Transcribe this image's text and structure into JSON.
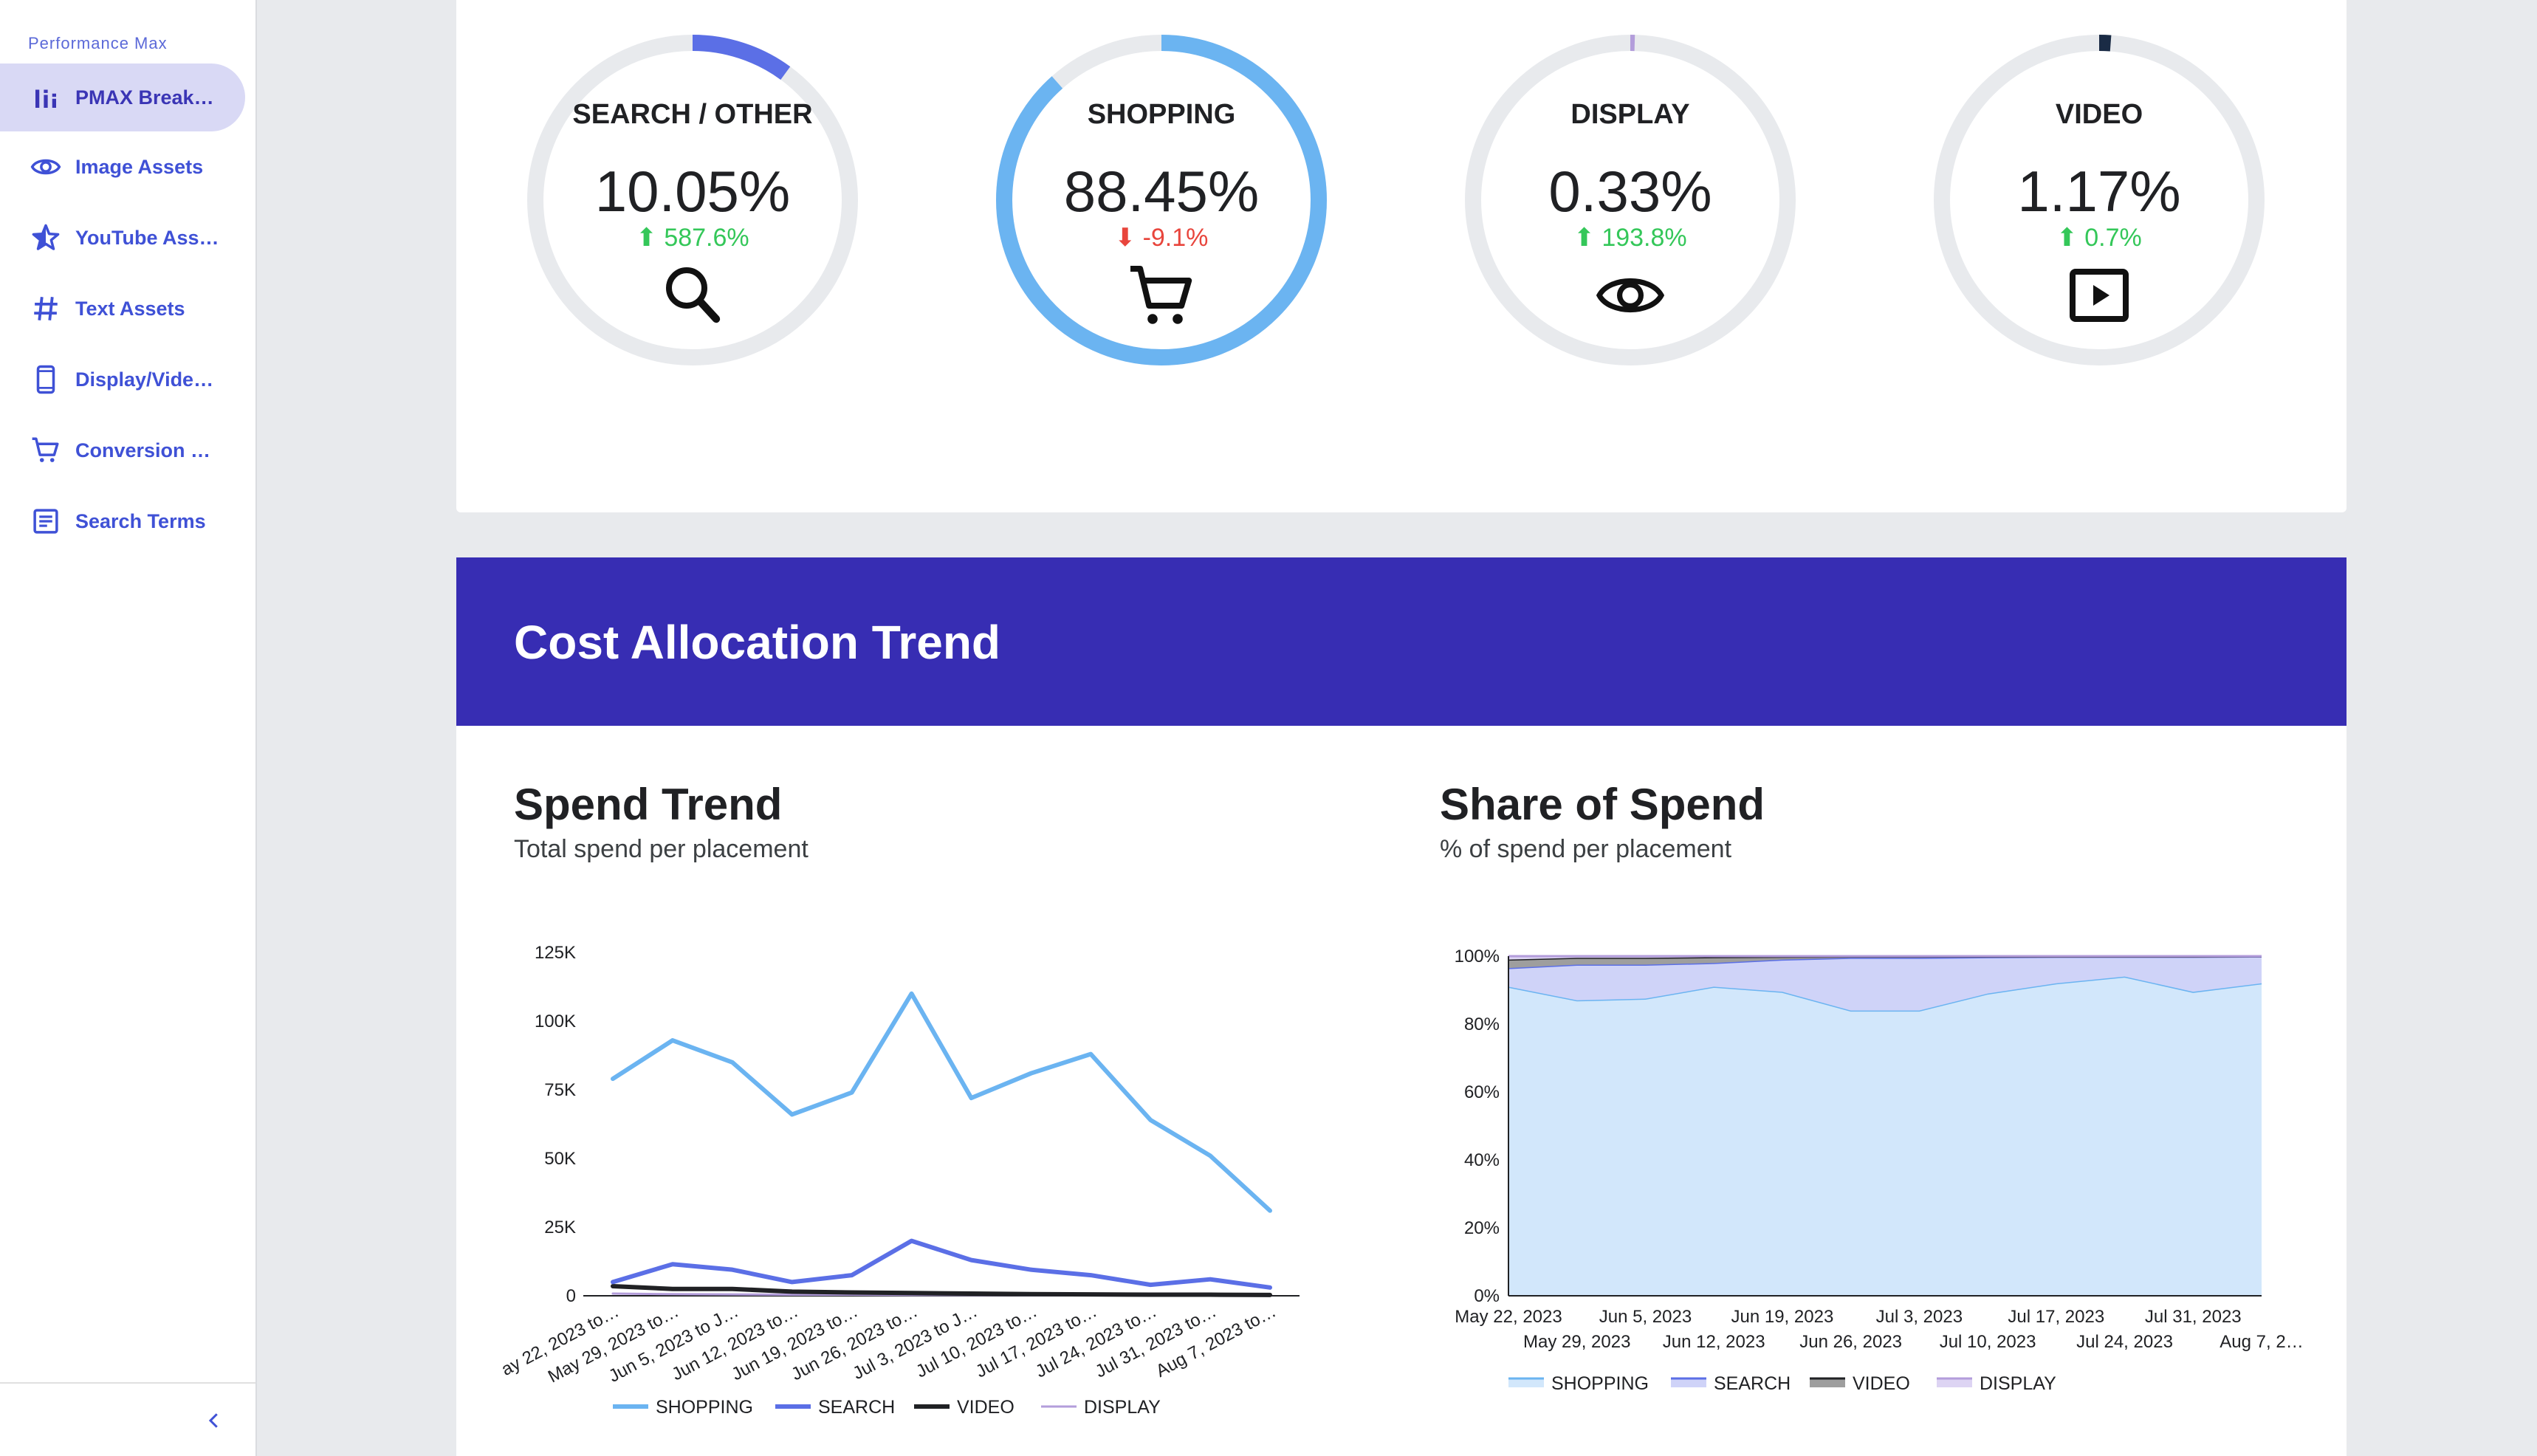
{
  "sidebar": {
    "title": "Performance Max",
    "items": [
      {
        "label": "PMAX Break…",
        "icon": "bar-chart-icon",
        "active": true
      },
      {
        "label": "Image Assets",
        "icon": "eye-icon",
        "active": false
      },
      {
        "label": "YouTube Ass…",
        "icon": "star-icon",
        "active": false
      },
      {
        "label": "Text Assets",
        "icon": "hash-icon",
        "active": false
      },
      {
        "label": "Display/Vide…",
        "icon": "phone-icon",
        "active": false
      },
      {
        "label": "Conversion …",
        "icon": "cart-icon",
        "active": false
      },
      {
        "label": "Search Terms",
        "icon": "list-icon",
        "active": false
      }
    ]
  },
  "donuts": [
    {
      "label": "SEARCH / OTHER",
      "value": "10.05%",
      "share": 0.1005,
      "change": "587.6%",
      "direction": "up",
      "color": "#5b6fe6",
      "icon": "search-icon"
    },
    {
      "label": "SHOPPING",
      "value": "88.45%",
      "share": 0.8845,
      "change": "-9.1%",
      "direction": "down",
      "color": "#6bb4f1",
      "icon": "cart-icon"
    },
    {
      "label": "DISPLAY",
      "value": "0.33%",
      "share": 0.0033,
      "change": "193.8%",
      "direction": "up",
      "color": "#b39ddb",
      "icon": "eye-icon"
    },
    {
      "label": "VIDEO",
      "value": "1.17%",
      "share": 0.0117,
      "change": "0.7%",
      "direction": "up",
      "color": "#1a2b45",
      "icon": "play-icon"
    }
  ],
  "section": {
    "title": "Cost Allocation Trend"
  },
  "spend_trend": {
    "title": "Spend Trend",
    "subtitle": "Total spend per placement"
  },
  "share_of_spend": {
    "title": "Share of Spend",
    "subtitle": "% of spend per placement"
  },
  "colors": {
    "shopping": "#6bb4f1",
    "search": "#5b6fe6",
    "video": "#202124",
    "display": "#b39ddb",
    "banner": "#372db3"
  },
  "chart_data": [
    {
      "type": "line",
      "title": "Spend Trend",
      "subtitle": "Total spend per placement",
      "categories": [
        "May 22, 2023 to…",
        "May 29, 2023 to…",
        "Jun 5, 2023 to J…",
        "Jun 12, 2023 to…",
        "Jun 19, 2023 to…",
        "Jun 26, 2023 to…",
        "Jul 3, 2023 to J…",
        "Jul 10, 2023 to…",
        "Jul 17, 2023 to…",
        "Jul 24, 2023 to…",
        "Jul 31, 2023 to…",
        "Aug 7, 2023 to…"
      ],
      "category_labels": [
        "ay 22, 2023 to…",
        "May 29, 2023 to…",
        "Jun 5, 2023 to J…",
        "Jun 12, 2023 to…",
        "Jun 19, 2023 to…",
        "Jun 26, 2023 to…",
        "Jul 3, 2023 to J…",
        "Jul 10, 2023 to…",
        "Jul 17, 2023 to…",
        "Jul 24, 2023 to…",
        "Jul 31, 2023 to…",
        "Aug 7, 2023 to…"
      ],
      "series": [
        {
          "name": "SHOPPING",
          "color": "#6bb4f1",
          "values": [
            79000,
            93000,
            85000,
            66000,
            74000,
            110000,
            72000,
            81000,
            88000,
            64000,
            51000,
            31000
          ]
        },
        {
          "name": "SEARCH",
          "color": "#5b6fe6",
          "values": [
            5000,
            11500,
            9500,
            5000,
            7500,
            20000,
            13000,
            9500,
            7500,
            4000,
            6000,
            3000
          ]
        },
        {
          "name": "VIDEO",
          "color": "#202124",
          "values": [
            3500,
            2500,
            2500,
            1500,
            1200,
            1000,
            800,
            600,
            500,
            400,
            400,
            300
          ]
        },
        {
          "name": "DISPLAY",
          "color": "#b39ddb",
          "values": [
            800,
            600,
            500,
            400,
            400,
            300,
            300,
            200,
            200,
            200,
            200,
            100
          ]
        }
      ],
      "yticks": [
        "0",
        "25K",
        "50K",
        "75K",
        "100K",
        "125K"
      ],
      "ylim": [
        0,
        125000
      ]
    },
    {
      "type": "area",
      "title": "Share of Spend",
      "subtitle": "% of spend per placement",
      "categories": [
        "May 22, 2023",
        "May 29, 2023",
        "Jun 5, 2023",
        "Jun 12, 2023",
        "Jun 19, 2023",
        "Jun 26, 2023",
        "Jul 3, 2023",
        "Jul 10, 2023",
        "Jul 17, 2023",
        "Jul 24, 2023",
        "Jul 31, 2023",
        "Aug 7, 2…"
      ],
      "series": [
        {
          "name": "SHOPPING",
          "color": "#6bb4f1",
          "values": [
            91,
            87,
            87.5,
            91,
            89.5,
            84,
            84,
            89,
            92,
            94,
            89.5,
            92
          ]
        },
        {
          "name": "SEARCH",
          "color": "#5b6fe6",
          "values": [
            5.5,
            10.5,
            10,
            7,
            9.5,
            15.5,
            15.5,
            10.7,
            7.8,
            5.8,
            10.3,
            7.9
          ]
        },
        {
          "name": "VIDEO",
          "color": "#202124",
          "values": [
            2.5,
            2,
            2,
            1.7,
            0.8,
            0.4,
            0.4,
            0.2,
            0.1,
            0.1,
            0.1,
            0.05
          ]
        },
        {
          "name": "DISPLAY",
          "color": "#b39ddb",
          "values": [
            1,
            0.5,
            0.5,
            0.3,
            0.2,
            0.1,
            0.1,
            0.1,
            0.1,
            0.1,
            0.1,
            0.05
          ]
        }
      ],
      "yticks": [
        "0%",
        "20%",
        "40%",
        "60%",
        "80%",
        "100%"
      ],
      "ylim": [
        0,
        100
      ]
    }
  ]
}
